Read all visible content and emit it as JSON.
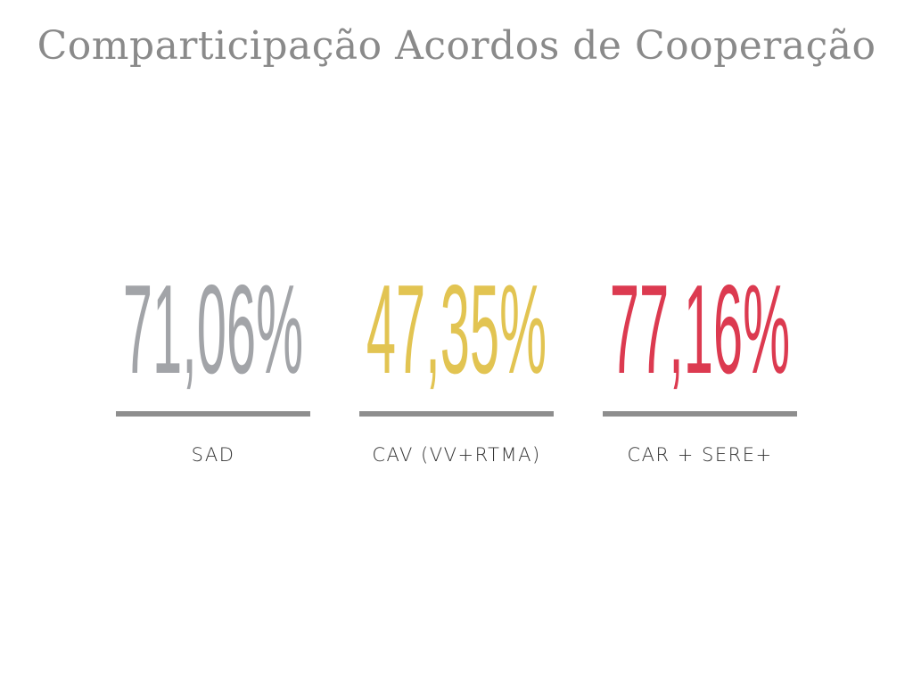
{
  "title": "Comparticipação Acordos de Cooperação",
  "stats": [
    {
      "value": "71,06%",
      "label": "SAD",
      "color": "#a2a4a8"
    },
    {
      "value": "47,35%",
      "label": "CAV (VV+RTMA)",
      "color": "#e2c452"
    },
    {
      "value": "77,16%",
      "label": "CAR + SERE+",
      "color": "#dc3a50"
    }
  ]
}
